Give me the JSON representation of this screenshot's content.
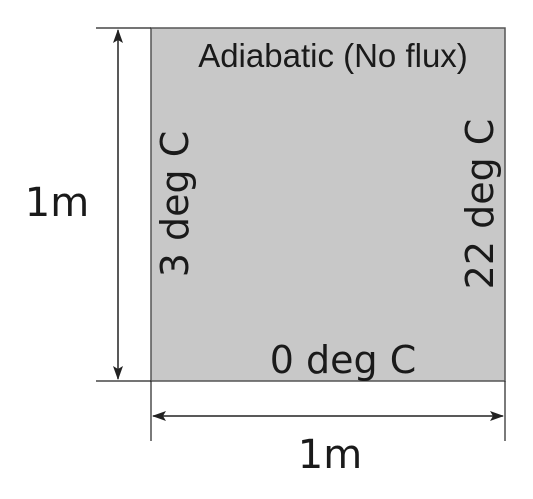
{
  "plate": {
    "fill_color": "#c8c8c8",
    "border_color": "#555555",
    "top_label": "Adiabatic (No flux)",
    "left_label": "3 deg C",
    "right_label": "22 deg C",
    "bottom_label": "0 deg C"
  },
  "dimensions": {
    "height_label": "1m",
    "width_label": "1m",
    "line_color": "#222222"
  }
}
